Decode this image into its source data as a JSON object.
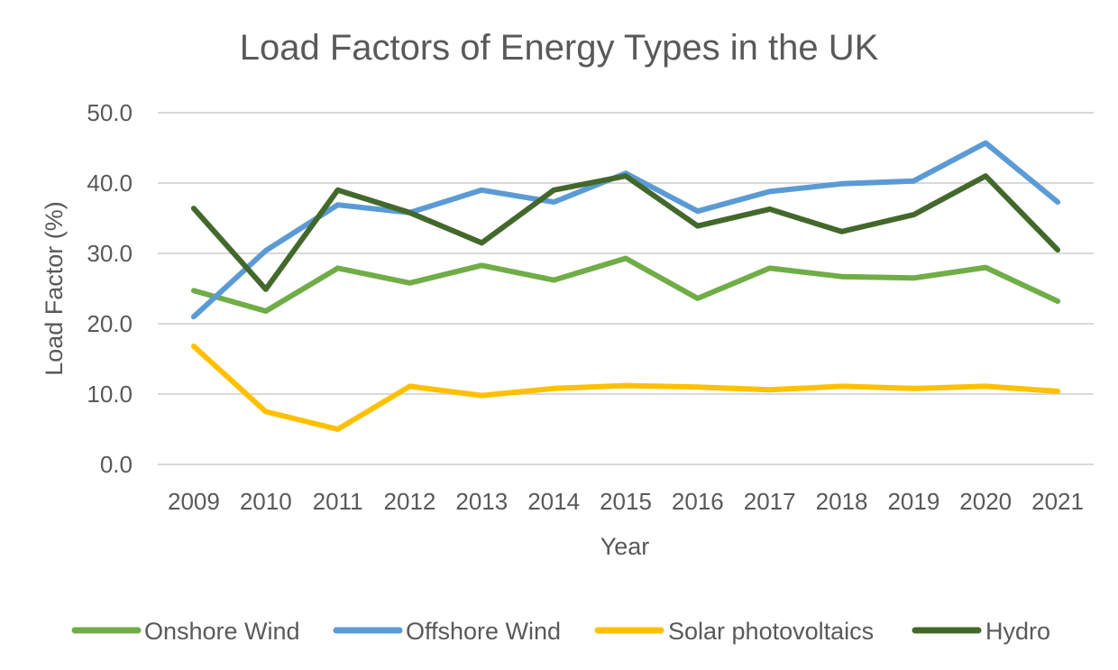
{
  "chart_data": {
    "type": "line",
    "title": "Load Factors of Energy Types in the UK",
    "xlabel": "Year",
    "ylabel": "Load Factor (%)",
    "ylim": [
      0,
      50
    ],
    "y_ticks": [
      "0.0",
      "10.0",
      "20.0",
      "30.0",
      "40.0",
      "50.0"
    ],
    "grid": true,
    "legend_position": "bottom",
    "categories": [
      "2009",
      "2010",
      "2011",
      "2012",
      "2013",
      "2014",
      "2015",
      "2016",
      "2017",
      "2018",
      "2019",
      "2020",
      "2021"
    ],
    "series": [
      {
        "name": "Onshore Wind",
        "color": "#70ad47",
        "values": [
          24.7,
          21.8,
          27.9,
          25.8,
          28.3,
          26.2,
          29.3,
          23.6,
          27.9,
          26.7,
          26.5,
          28.0,
          23.2
        ]
      },
      {
        "name": "Offshore Wind",
        "color": "#5b9bd5",
        "values": [
          21.0,
          30.4,
          36.9,
          35.8,
          39.0,
          37.3,
          41.4,
          36.0,
          38.8,
          39.9,
          40.3,
          45.7,
          37.3
        ]
      },
      {
        "name": "Solar photovoltaics",
        "color": "#ffc000",
        "values": [
          16.8,
          7.5,
          5.0,
          11.1,
          9.8,
          10.8,
          11.2,
          11.0,
          10.6,
          11.1,
          10.8,
          11.1,
          10.4
        ]
      },
      {
        "name": "Hydro",
        "color": "#43682b",
        "values": [
          36.4,
          24.9,
          39.0,
          35.8,
          31.5,
          39.0,
          41.0,
          33.9,
          36.3,
          33.1,
          35.5,
          41.0,
          30.5
        ]
      }
    ]
  }
}
